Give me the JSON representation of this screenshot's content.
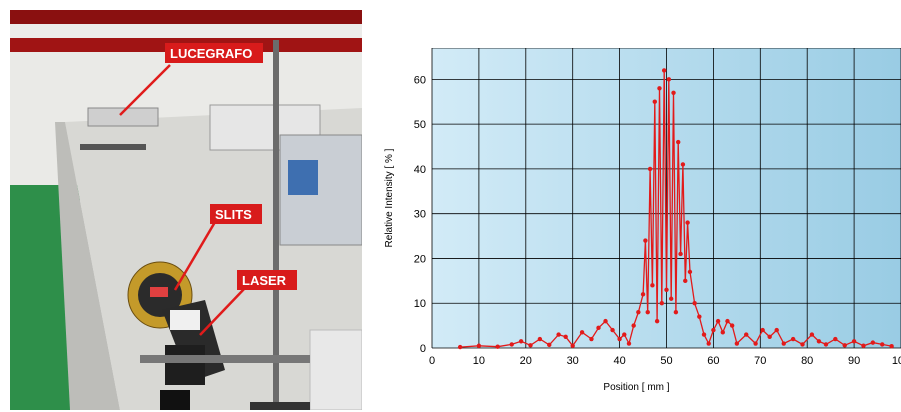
{
  "photo": {
    "labels": {
      "lucegrafo": "LUCEGRAFO",
      "slits": "SLITS",
      "laser": "LASER"
    },
    "colors": {
      "label_bg": "#d81b1b",
      "label_text": "#ffffff",
      "wall": "#e9e9e6",
      "floor": "#2e8f4a",
      "table": "#d7d7d3"
    }
  },
  "chart_data": {
    "type": "line",
    "title": "",
    "xlabel": "Position   [ mm ]",
    "ylabel": "Relative Intensity   [ % ]",
    "xlim": [
      0,
      100
    ],
    "ylim": [
      0,
      67
    ],
    "xticks": [
      0,
      10,
      20,
      30,
      40,
      50,
      60,
      70,
      80,
      90,
      100
    ],
    "yticks": [
      0,
      10,
      20,
      30,
      40,
      50,
      60
    ],
    "grid": true,
    "colors": {
      "series": "#e21a1a",
      "plot_bg_left": "#cfe8f5",
      "plot_bg_right": "#9ecfe6",
      "grid": "#000000"
    },
    "series": [
      {
        "x": [
          6,
          10,
          14,
          17,
          19,
          21,
          23,
          25,
          27,
          28.5,
          30,
          32,
          34,
          35.5,
          37,
          38.5,
          40,
          41,
          42,
          43,
          44,
          45,
          45.5,
          46,
          46.5,
          47,
          47.5,
          48,
          48.5,
          49,
          49.5,
          50,
          50.5,
          51,
          51.5,
          52,
          52.5,
          53,
          53.5,
          54,
          54.5,
          55,
          56,
          57,
          58,
          59,
          60,
          61,
          62,
          63,
          64,
          65,
          67,
          69,
          70.5,
          72,
          73.5,
          75,
          77,
          79,
          81,
          82.5,
          84,
          86,
          88,
          90,
          92,
          94,
          96,
          98
        ],
        "y": [
          0.2,
          0.5,
          0.3,
          0.8,
          1.5,
          0.6,
          2.0,
          0.7,
          3.0,
          2.5,
          0.5,
          3.5,
          2.0,
          4.5,
          6.0,
          4.0,
          2.0,
          3.0,
          1.0,
          5.0,
          8.0,
          12.0,
          24.0,
          8.0,
          40.0,
          14.0,
          55.0,
          6.0,
          58.0,
          10.0,
          62.0,
          13.0,
          60.0,
          11.0,
          57.0,
          8.0,
          46.0,
          21.0,
          41.0,
          15.0,
          28.0,
          17.0,
          10.0,
          7.0,
          3.0,
          1.0,
          4.0,
          6.0,
          3.5,
          6.0,
          5.0,
          1.0,
          3.0,
          1.0,
          4.0,
          2.5,
          4.0,
          1.0,
          2.0,
          0.8,
          3.0,
          1.5,
          0.8,
          2.0,
          0.6,
          1.5,
          0.5,
          1.2,
          0.8,
          0.4
        ]
      }
    ]
  }
}
